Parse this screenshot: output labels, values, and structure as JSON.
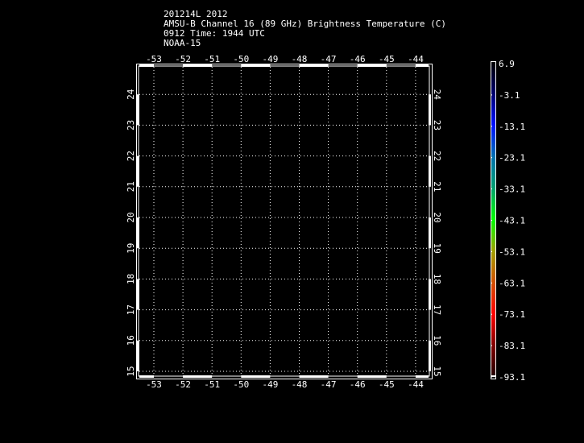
{
  "header": {
    "line1": "201214L 2012",
    "line2": "AMSU-B Channel 16 (89 GHz) Brightness Temperature (C)",
    "line3": "0912 Time: 1944 UTC",
    "line4": "NOAA-15"
  },
  "map": {
    "longitudes": [
      -53,
      -52,
      -51,
      -50,
      -49,
      -48,
      -47,
      -46,
      -45,
      -44
    ],
    "latitudes": [
      15,
      16,
      17,
      18,
      19,
      20,
      21,
      22,
      23,
      24
    ],
    "lon_labels": [
      "-53",
      "-52",
      "-51",
      "-50",
      "-49",
      "-48",
      "-47",
      "-46",
      "-45",
      "-44"
    ],
    "lat_labels": [
      "15",
      "16",
      "17",
      "18",
      "19",
      "20",
      "21",
      "22",
      "23",
      "24"
    ],
    "background": "#000000",
    "grid": "dotted white"
  },
  "colorbar": {
    "labels": [
      "6.9",
      "-3.1",
      "-13.1",
      "-23.1",
      "-33.1",
      "-43.1",
      "-53.1",
      "-63.1",
      "-73.1",
      "-83.1",
      "-93.1"
    ],
    "colors_top_to_bottom": [
      "#000000",
      "#00006e",
      "#0010ff",
      "#0070b0",
      "#00a070",
      "#00ff00",
      "#a0a000",
      "#d05000",
      "#ff0000",
      "#800000",
      "#200000"
    ]
  }
}
